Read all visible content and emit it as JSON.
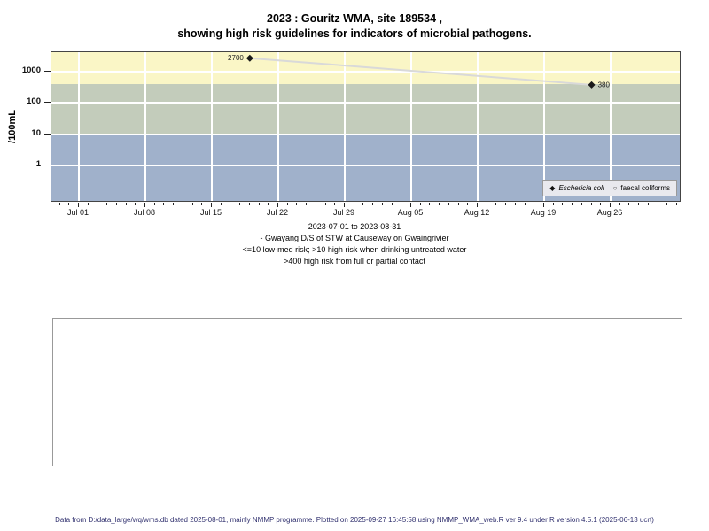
{
  "title": {
    "line1": "2023 : Gouritz WMA, site 189534 ,",
    "line2": "showing high risk guidelines for indicators of microbial pathogens."
  },
  "chart_data": {
    "type": "scatter",
    "y_scale": "log10",
    "ylabel": "/100mL",
    "y_ticks": [
      1000,
      100,
      10,
      1
    ],
    "x_range": [
      "2023-07-01",
      "2023-08-31"
    ],
    "x_tick_labels": [
      "Jul 01",
      "Jul 08",
      "Jul 15",
      "Jul 22",
      "Jul 29",
      "Aug 05",
      "Aug 12",
      "Aug 19",
      "Aug 26"
    ],
    "grid": true,
    "legend_position": "bottom-right",
    "series": [
      {
        "name": "Eschericia coli",
        "marker": "filled-diamond",
        "color": "#1a1a1a",
        "line_color": "#d9d9d9",
        "points": [
          {
            "date": "2023-07-19",
            "value": 2700,
            "label": "2700",
            "label_side": "left"
          },
          {
            "date": "2023-08-24",
            "value": 380,
            "label": "380",
            "label_side": "right"
          }
        ]
      },
      {
        "name": "faecal coliforms",
        "marker": "open-circle",
        "color": "#555555",
        "points": []
      }
    ],
    "risk_bands": [
      {
        "min": 400,
        "max": null,
        "color": "#faf6c6",
        "meaning": ">400 high risk from full or partial contact"
      },
      {
        "min": 10,
        "max": 400,
        "color": "#c3ccbb",
        "meaning": ">10 high risk when drinking untreated water"
      },
      {
        "min": null,
        "max": 10,
        "color": "#a0b1cb",
        "meaning": "<=10 low-med risk"
      }
    ]
  },
  "caption": {
    "line1": "2023-07-01 to 2023-08-31",
    "line2": "- Gwayang D/S of STW at Causeway on Gwaingrivier",
    "line3": "<=10 low-med risk; >10 high risk when drinking untreated water",
    "line4": ">400 high risk from full or partial contact"
  },
  "footer": {
    "text": "Data from D:/data_large/wq/wms.db dated 2025-08-01, mainly NMMP programme. Plotted on 2025-09-27 16:45:58 using NMMP_WMA_web.R ver 9.4 under R version 4.5.1 (2025-06-13 ucrt)"
  }
}
